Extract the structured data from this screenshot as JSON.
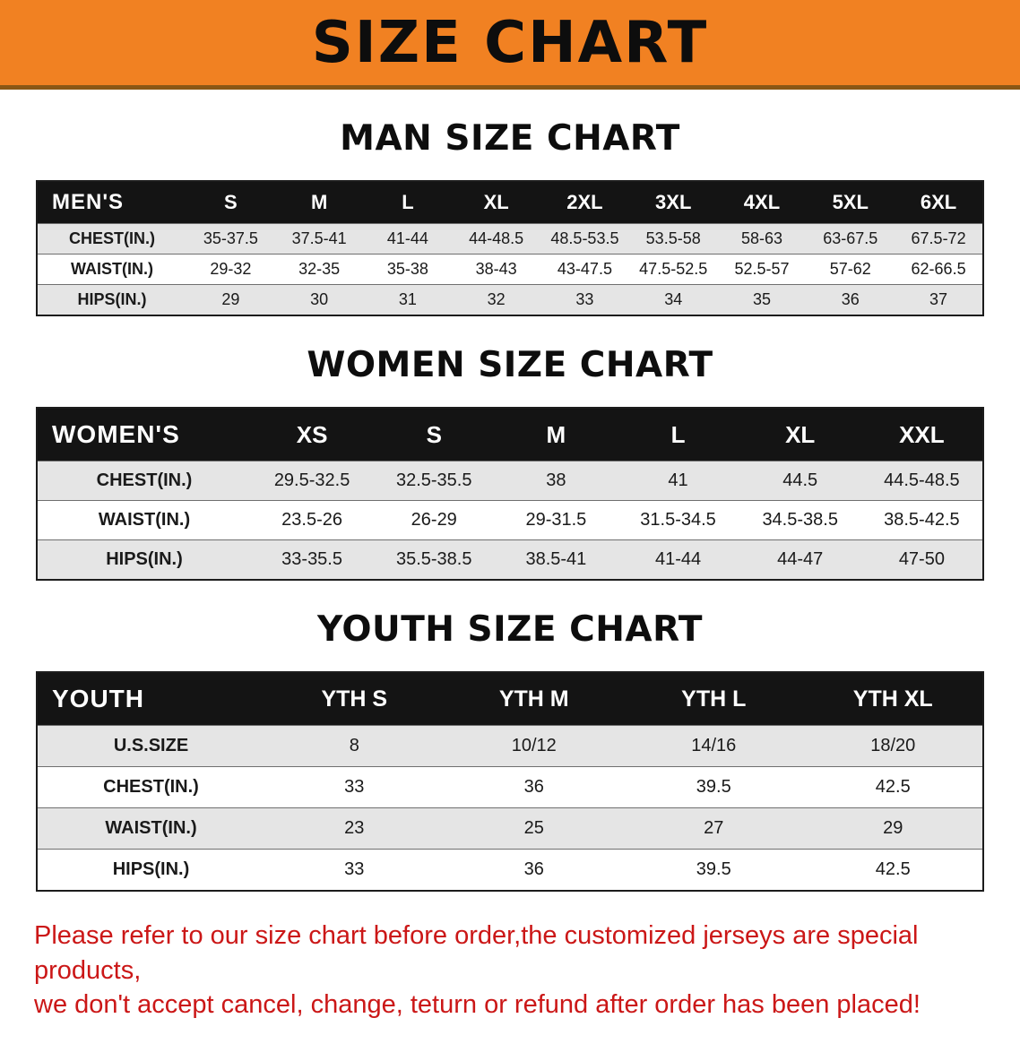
{
  "banner": {
    "title": "SIZE CHART"
  },
  "colors": {
    "banner_bg": "#f18122",
    "banner_edge": "#8a5715",
    "table_header_bg": "#141414",
    "row_stripe": "#e5e5e5",
    "disclaimer_text": "#cb1717"
  },
  "sections": [
    {
      "heading": "MAN SIZE CHART",
      "table": {
        "header": [
          "MEN'S",
          "S",
          "M",
          "L",
          "XL",
          "2XL",
          "3XL",
          "4XL",
          "5XL",
          "6XL"
        ],
        "rows": [
          [
            "CHEST(IN.)",
            "35-37.5",
            "37.5-41",
            "41-44",
            "44-48.5",
            "48.5-53.5",
            "53.5-58",
            "58-63",
            "63-67.5",
            "67.5-72"
          ],
          [
            "WAIST(IN.)",
            "29-32",
            "32-35",
            "35-38",
            "38-43",
            "43-47.5",
            "47.5-52.5",
            "52.5-57",
            "57-62",
            "62-66.5"
          ],
          [
            "HIPS(IN.)",
            "29",
            "30",
            "31",
            "32",
            "33",
            "34",
            "35",
            "36",
            "37"
          ]
        ]
      }
    },
    {
      "heading": "WOMEN SIZE CHART",
      "table": {
        "header": [
          "WOMEN'S",
          "XS",
          "S",
          "M",
          "L",
          "XL",
          "XXL"
        ],
        "rows": [
          [
            "CHEST(IN.)",
            "29.5-32.5",
            "32.5-35.5",
            "38",
            "41",
            "44.5",
            "44.5-48.5"
          ],
          [
            "WAIST(IN.)",
            "23.5-26",
            "26-29",
            "29-31.5",
            "31.5-34.5",
            "34.5-38.5",
            "38.5-42.5"
          ],
          [
            "HIPS(IN.)",
            "33-35.5",
            "35.5-38.5",
            "38.5-41",
            "41-44",
            "44-47",
            "47-50"
          ]
        ]
      }
    },
    {
      "heading": "YOUTH SIZE CHART",
      "table": {
        "header": [
          "YOUTH",
          "YTH S",
          "YTH M",
          "YTH L",
          "YTH XL"
        ],
        "rows": [
          [
            "U.S.SIZE",
            "8",
            "10/12",
            "14/16",
            "18/20"
          ],
          [
            "CHEST(IN.)",
            "33",
            "36",
            "39.5",
            "42.5"
          ],
          [
            "WAIST(IN.)",
            "23",
            "25",
            "27",
            "29"
          ],
          [
            "HIPS(IN.)",
            "33",
            "36",
            "39.5",
            "42.5"
          ]
        ]
      }
    }
  ],
  "disclaimer": {
    "lines": [
      "Please refer to our size chart before order,the customized jerseys are special products,",
      "we don't accept cancel, change, teturn or refund after order has been placed!"
    ]
  }
}
